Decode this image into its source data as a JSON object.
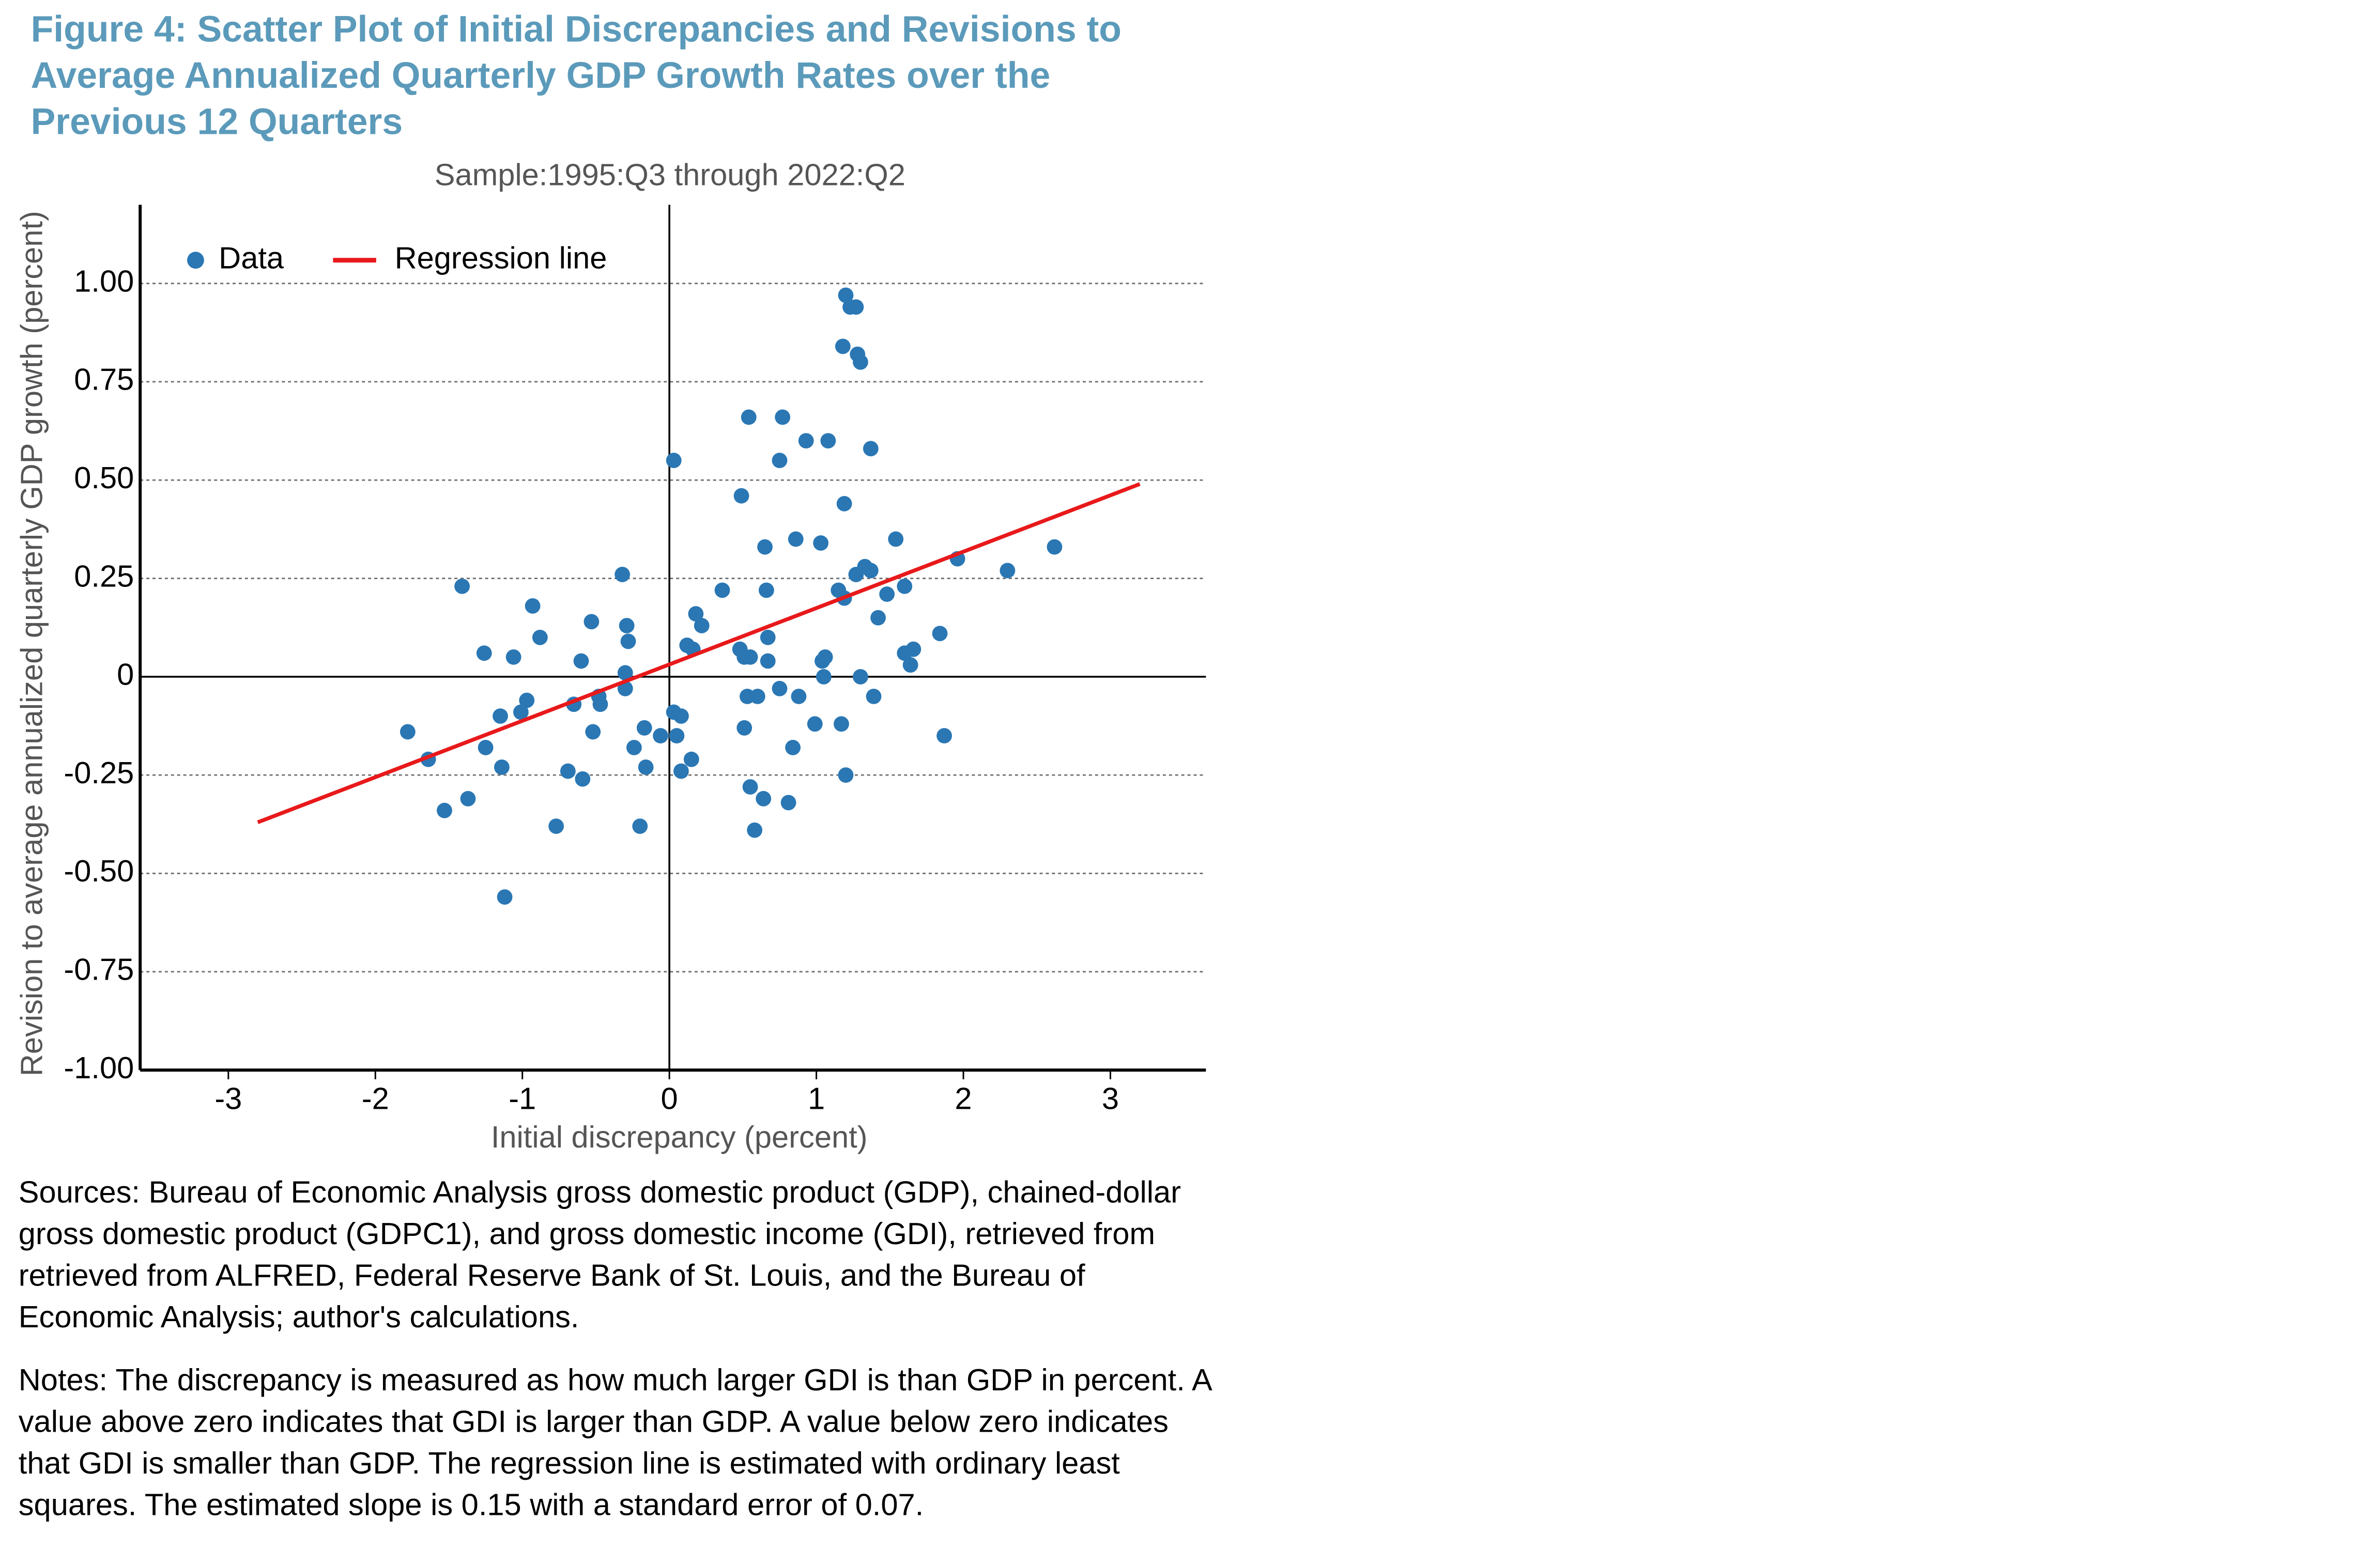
{
  "chart_data": {
    "type": "scatter",
    "title": "Figure 4: Scatter Plot of Initial Discrepancies and Revisions to Average Annualized Quarterly GDP Growth Rates over the Previous 12 Quarters",
    "subtitle": "Sample:1995:Q3 through 2022:Q2",
    "x_label": "Initial discrepancy (percent)",
    "y_label": "Revision to average annualized quarterly GDP growth (percent)",
    "sources": "Sources: Bureau of Economic Analysis gross domestic product (GDP), chained-dollar gross domestic product (GDPC1), and gross domestic income (GDI), retrieved from retrieved from ALFRED, Federal Reserve Bank of St. Louis, and the Bureau of Economic Analysis; author's calculations.",
    "notes": "Notes: The discrepancy is measured as how much larger GDI is than GDP in percent. A value above zero indicates that GDI is larger than GDP. A value below zero indicates that GDI is smaller than GDP. The regression line is estimated with ordinary least squares. The estimated slope is 0.15 with a standard error of 0.07.",
    "xlim": [
      -3.6,
      3.65
    ],
    "ylim": [
      -1,
      1.2
    ],
    "xticks": [
      -3,
      -2,
      -1,
      0,
      1,
      2,
      3
    ],
    "yticks": [
      {
        "value": 1,
        "label": "1.00"
      },
      0.75,
      {
        "value": 0.5,
        "label": "0.50"
      },
      0.25,
      0,
      -0.25,
      {
        "value": -0.5,
        "label": "-0.50"
      },
      -0.75,
      {
        "value": -1,
        "label": "-1.00"
      }
    ],
    "grid": true,
    "legend": "upper left",
    "series": [
      {
        "name": "Data",
        "color": "#2a77b4",
        "x": [
          -1.78,
          -1.64,
          -1.53,
          -1.41,
          -1.37,
          -1.26,
          -1.25,
          -1.15,
          -1.14,
          -1.12,
          -1.06,
          -1.01,
          -0.97,
          -0.93,
          -0.88,
          -0.77,
          -0.69,
          -0.65,
          -0.6,
          -0.59,
          -0.53,
          -0.52,
          -0.48,
          -0.47,
          -0.32,
          -0.29,
          -0.28,
          -0.3,
          -0.3,
          -0.24,
          -0.2,
          -0.17,
          -0.16,
          -0.06,
          0.03,
          0.03,
          0.08,
          0.05,
          0.08,
          0.12,
          0.16,
          0.18,
          0.15,
          0.22,
          0.36,
          0.48,
          0.49,
          0.51,
          0.51,
          0.53,
          0.54,
          0.55,
          0.55,
          0.58,
          0.6,
          0.64,
          0.65,
          0.66,
          0.67,
          0.67,
          0.75,
          0.77,
          0.75,
          0.81,
          0.84,
          0.86,
          0.88,
          0.93,
          0.99,
          1.03,
          1.04,
          1.06,
          1.08,
          1.05,
          1.17,
          1.15,
          1.19,
          1.19,
          1.2,
          1.23,
          1.27,
          1.18,
          1.2,
          1.27,
          1.28,
          1.3,
          1.33,
          1.3,
          1.37,
          1.39,
          1.37,
          1.42,
          1.48,
          1.54,
          1.6,
          1.6,
          1.64,
          1.66,
          1.84,
          1.87,
          1.96,
          2.3,
          2.62
        ],
        "values": [
          -0.14,
          -0.21,
          -0.34,
          0.23,
          -0.31,
          0.06,
          -0.18,
          -0.1,
          -0.23,
          -0.56,
          0.05,
          -0.09,
          -0.06,
          0.18,
          0.1,
          -0.38,
          -0.24,
          -0.07,
          0.04,
          -0.26,
          0.14,
          -0.14,
          -0.05,
          -0.07,
          0.26,
          0.13,
          0.09,
          0.01,
          -0.03,
          -0.18,
          -0.38,
          -0.13,
          -0.23,
          -0.15,
          0.55,
          -0.09,
          -0.1,
          -0.15,
          -0.24,
          0.08,
          0.07,
          0.16,
          -0.21,
          0.13,
          0.22,
          0.07,
          0.46,
          -0.13,
          0.05,
          -0.05,
          0.66,
          0.05,
          -0.28,
          -0.39,
          -0.05,
          -0.31,
          0.33,
          0.22,
          0.1,
          0.04,
          -0.03,
          0.66,
          0.55,
          -0.32,
          -0.18,
          0.35,
          -0.05,
          0.6,
          -0.12,
          0.34,
          0.04,
          0.05,
          0.6,
          0,
          -0.12,
          0.22,
          0.2,
          0.44,
          0.97,
          0.94,
          0.94,
          0.84,
          -0.25,
          0.26,
          0.82,
          0.8,
          0.28,
          0,
          0.27,
          -0.05,
          0.58,
          0.15,
          0.21,
          0.35,
          0.06,
          0.23,
          0.03,
          0.07,
          0.11,
          -0.15,
          0.3,
          0.27,
          0.33
        ]
      },
      {
        "name": "Regression line",
        "color": "#e8191b",
        "type": "line",
        "x": [
          -2.8,
          3.2
        ],
        "values": [
          -0.37,
          0.49
        ]
      }
    ]
  }
}
